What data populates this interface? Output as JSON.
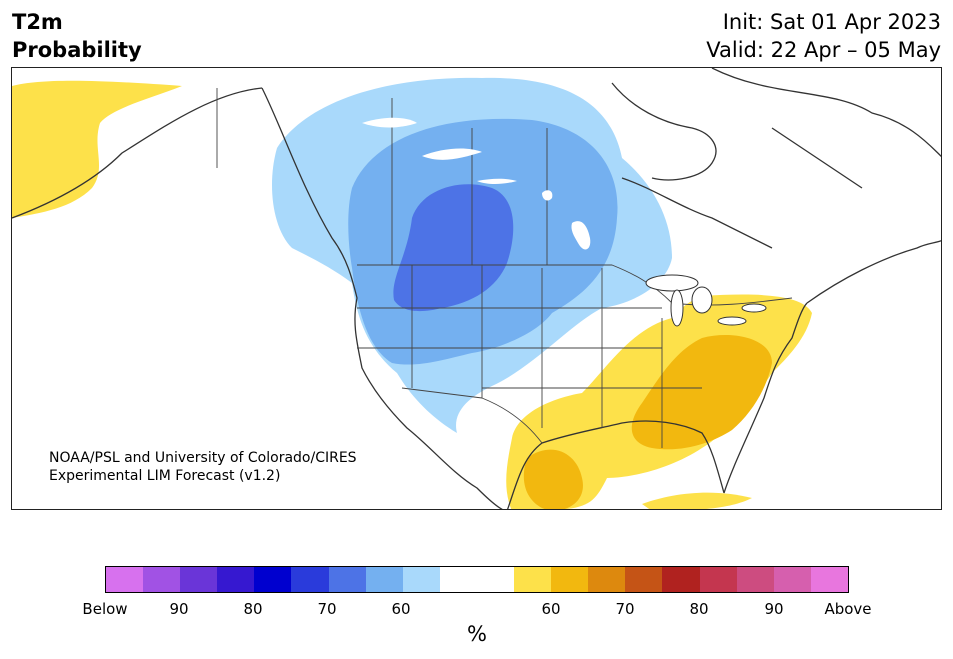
{
  "header": {
    "title_line1": "T2m",
    "title_line2": "Probability",
    "init_text": "Init: Sat 01 Apr 2023",
    "valid_text": "Valid: 22 Apr – 05 May"
  },
  "map": {
    "credit_line1": "NOAA/PSL and University of Colorado/CIRES",
    "credit_line2": "Experimental LIM Forecast (v1.2)",
    "region": "North America",
    "colors": {
      "below_60": "#a9d9fb",
      "below_70": "#74b0f0",
      "below_80": "#4d73e6",
      "above_60": "#fde14a",
      "above_70": "#f2b80f",
      "land_outline": "#333333",
      "water": "#ffffff"
    }
  },
  "colorbar": {
    "unit": "%",
    "colors": [
      "#d771ee",
      "#a152e4",
      "#6a35d8",
      "#3618d0",
      "#0000cf",
      "#2a3bdb",
      "#4d73e6",
      "#74b0f0",
      "#a9d9fb",
      "#ffffff",
      "#ffffff",
      "#fde14a",
      "#f2b80f",
      "#dd890e",
      "#c55416",
      "#b0221f",
      "#c4364f",
      "#cd4c80",
      "#d65fae",
      "#e876de"
    ],
    "tick_labels": [
      "Below",
      "90",
      "80",
      "70",
      "60",
      "60",
      "70",
      "80",
      "90",
      "Above"
    ]
  }
}
